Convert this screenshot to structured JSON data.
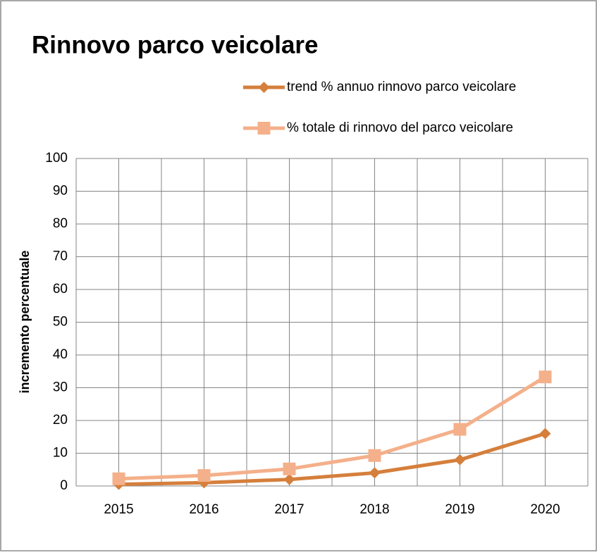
{
  "chart_data": {
    "type": "line",
    "title": "Rinnovo parco veicolare",
    "y_label": "incremento percentuale",
    "categories": [
      "2015",
      "2016",
      "2017",
      "2018",
      "2019",
      "2020"
    ],
    "series": [
      {
        "name": "trend % annuo rinnovo parco veicolare",
        "color": "#d57f3c",
        "marker": "diamond",
        "values": [
          0.5,
          1,
          2,
          4,
          8,
          16
        ]
      },
      {
        "name": "% totale di rinnovo del parco veicolare",
        "color": "#f4b08a",
        "marker": "square",
        "values": [
          2.2,
          3.2,
          5.2,
          9.3,
          17.3,
          33.3
        ]
      }
    ],
    "ylim": [
      0,
      100
    ],
    "yticks": [
      0,
      10,
      20,
      30,
      40,
      50,
      60,
      70,
      80,
      90,
      100
    ],
    "grid": true,
    "legend": "top right"
  }
}
